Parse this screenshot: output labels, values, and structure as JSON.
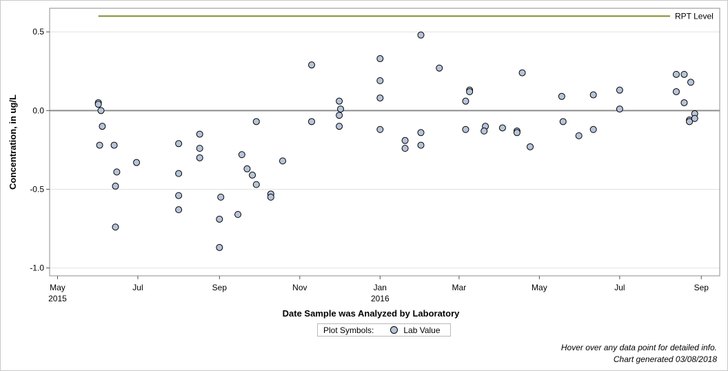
{
  "chart_data": {
    "type": "scatter",
    "xlabel": "Date Sample was Analyzed by Laboratory",
    "ylabel": "Concentration, in ug/L",
    "ylim": [
      -1.05,
      0.65
    ],
    "xlim": [
      "2015-04-25",
      "2016-09-15"
    ],
    "yticks": [
      {
        "value": 0.5,
        "label": "0.5"
      },
      {
        "value": 0.0,
        "label": "0.0"
      },
      {
        "value": -0.5,
        "label": "-0.5"
      },
      {
        "value": -1.0,
        "label": "-1.0"
      }
    ],
    "xticks": [
      {
        "date": "2015-05-01",
        "label": "May",
        "sub": "2015"
      },
      {
        "date": "2015-07-01",
        "label": "Jul",
        "sub": ""
      },
      {
        "date": "2015-09-01",
        "label": "Sep",
        "sub": ""
      },
      {
        "date": "2015-11-01",
        "label": "Nov",
        "sub": ""
      },
      {
        "date": "2016-01-01",
        "label": "Jan",
        "sub": "2016"
      },
      {
        "date": "2016-03-01",
        "label": "Mar",
        "sub": ""
      },
      {
        "date": "2016-05-01",
        "label": "May",
        "sub": ""
      },
      {
        "date": "2016-07-01",
        "label": "Jul",
        "sub": ""
      },
      {
        "date": "2016-09-01",
        "label": "Sep",
        "sub": ""
      }
    ],
    "grid": true,
    "zero_line": true,
    "reference_line": {
      "label": "RPT Level",
      "value": 0.6,
      "color": "#7f8c2a",
      "start": "2015-06-01"
    },
    "series": [
      {
        "name": "Lab Value",
        "color": "#b6c4d9",
        "points": [
          {
            "x": "2015-06-01",
            "y": 0.05
          },
          {
            "x": "2015-06-01",
            "y": 0.04
          },
          {
            "x": "2015-06-03",
            "y": 0.0
          },
          {
            "x": "2015-06-04",
            "y": -0.1
          },
          {
            "x": "2015-06-02",
            "y": -0.22
          },
          {
            "x": "2015-06-13",
            "y": -0.22
          },
          {
            "x": "2015-06-15",
            "y": -0.39
          },
          {
            "x": "2015-06-14",
            "y": -0.48
          },
          {
            "x": "2015-06-14",
            "y": -0.74
          },
          {
            "x": "2015-06-30",
            "y": -0.33
          },
          {
            "x": "2015-08-01",
            "y": -0.21
          },
          {
            "x": "2015-08-01",
            "y": -0.4
          },
          {
            "x": "2015-08-01",
            "y": -0.54
          },
          {
            "x": "2015-08-01",
            "y": -0.63
          },
          {
            "x": "2015-08-17",
            "y": -0.15
          },
          {
            "x": "2015-08-17",
            "y": -0.24
          },
          {
            "x": "2015-08-17",
            "y": -0.3
          },
          {
            "x": "2015-09-01",
            "y": -0.69
          },
          {
            "x": "2015-09-02",
            "y": -0.55
          },
          {
            "x": "2015-09-01",
            "y": -0.87
          },
          {
            "x": "2015-09-15",
            "y": -0.66
          },
          {
            "x": "2015-09-18",
            "y": -0.28
          },
          {
            "x": "2015-09-22",
            "y": -0.37
          },
          {
            "x": "2015-09-26",
            "y": -0.41
          },
          {
            "x": "2015-09-29",
            "y": -0.07
          },
          {
            "x": "2015-09-29",
            "y": -0.47
          },
          {
            "x": "2015-10-10",
            "y": -0.53
          },
          {
            "x": "2015-10-10",
            "y": -0.55
          },
          {
            "x": "2015-10-19",
            "y": -0.32
          },
          {
            "x": "2015-11-10",
            "y": 0.29
          },
          {
            "x": "2015-11-10",
            "y": -0.07
          },
          {
            "x": "2015-12-01",
            "y": 0.06
          },
          {
            "x": "2015-12-02",
            "y": 0.01
          },
          {
            "x": "2015-12-01",
            "y": -0.03
          },
          {
            "x": "2015-12-01",
            "y": -0.1
          },
          {
            "x": "2016-01-01",
            "y": 0.33
          },
          {
            "x": "2016-01-01",
            "y": 0.19
          },
          {
            "x": "2016-01-01",
            "y": 0.08
          },
          {
            "x": "2016-01-01",
            "y": -0.12
          },
          {
            "x": "2016-01-20",
            "y": -0.19
          },
          {
            "x": "2016-01-20",
            "y": -0.24
          },
          {
            "x": "2016-02-01",
            "y": 0.48
          },
          {
            "x": "2016-02-01",
            "y": -0.14
          },
          {
            "x": "2016-02-01",
            "y": -0.22
          },
          {
            "x": "2016-02-15",
            "y": 0.27
          },
          {
            "x": "2016-03-06",
            "y": 0.06
          },
          {
            "x": "2016-03-09",
            "y": 0.13
          },
          {
            "x": "2016-03-09",
            "y": 0.12
          },
          {
            "x": "2016-03-06",
            "y": -0.12
          },
          {
            "x": "2016-03-21",
            "y": -0.1
          },
          {
            "x": "2016-03-20",
            "y": -0.13
          },
          {
            "x": "2016-04-03",
            "y": -0.11
          },
          {
            "x": "2016-04-14",
            "y": -0.13
          },
          {
            "x": "2016-04-14",
            "y": -0.14
          },
          {
            "x": "2016-04-18",
            "y": 0.24
          },
          {
            "x": "2016-04-24",
            "y": -0.23
          },
          {
            "x": "2016-05-18",
            "y": 0.09
          },
          {
            "x": "2016-05-19",
            "y": -0.07
          },
          {
            "x": "2016-05-31",
            "y": -0.16
          },
          {
            "x": "2016-06-11",
            "y": 0.1
          },
          {
            "x": "2016-06-11",
            "y": -0.12
          },
          {
            "x": "2016-07-01",
            "y": 0.13
          },
          {
            "x": "2016-07-01",
            "y": 0.01
          },
          {
            "x": "2016-08-13",
            "y": 0.23
          },
          {
            "x": "2016-08-13",
            "y": 0.12
          },
          {
            "x": "2016-08-19",
            "y": 0.23
          },
          {
            "x": "2016-08-19",
            "y": 0.05
          },
          {
            "x": "2016-08-24",
            "y": 0.18
          },
          {
            "x": "2016-08-23",
            "y": -0.06
          },
          {
            "x": "2016-08-23",
            "y": -0.07
          },
          {
            "x": "2016-08-27",
            "y": -0.02
          },
          {
            "x": "2016-08-27",
            "y": -0.05
          }
        ]
      }
    ]
  },
  "legend": {
    "title": "Plot Symbols:",
    "item": "Lab Value"
  },
  "footnotes": {
    "hover": "Hover over any data point for detailed info.",
    "generated": "Chart generated 03/08/2018"
  }
}
